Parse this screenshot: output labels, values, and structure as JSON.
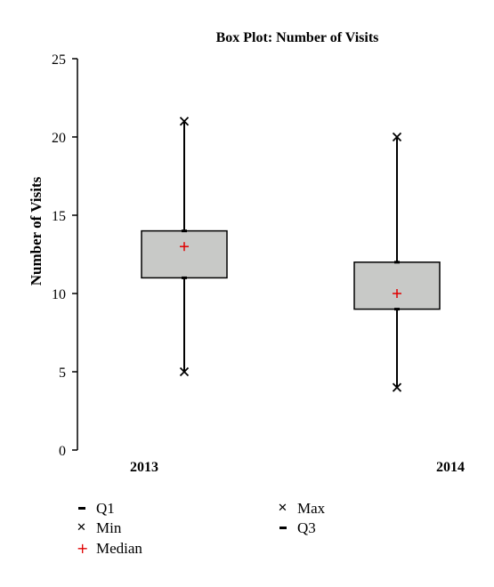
{
  "chart_data": {
    "type": "box",
    "title": "Box Plot: Number of Visits",
    "xlabel": "",
    "ylabel": "Number of Visits",
    "ylim": [
      0,
      25
    ],
    "yticks": [
      0,
      5,
      10,
      15,
      20,
      25
    ],
    "grid": false,
    "categories": [
      "2013",
      "2014"
    ],
    "boxes": [
      {
        "category": "2013",
        "min": 5,
        "q1": 11,
        "median": 13,
        "q3": 14,
        "max": 21
      },
      {
        "category": "2014",
        "min": 4,
        "q1": 9,
        "median": 10,
        "q3": 12,
        "max": 20
      }
    ],
    "colors": {
      "box_fill": "#c8c9c7",
      "median": "#e00000",
      "line": "#000000"
    },
    "legend_position": "bottom",
    "legend": [
      {
        "label": "Q1",
        "symbol": "dash"
      },
      {
        "label": "Min",
        "symbol": "x"
      },
      {
        "label": "Median",
        "symbol": "plus-red"
      },
      {
        "label": "Max",
        "symbol": "x"
      },
      {
        "label": "Q3",
        "symbol": "dash"
      }
    ]
  }
}
